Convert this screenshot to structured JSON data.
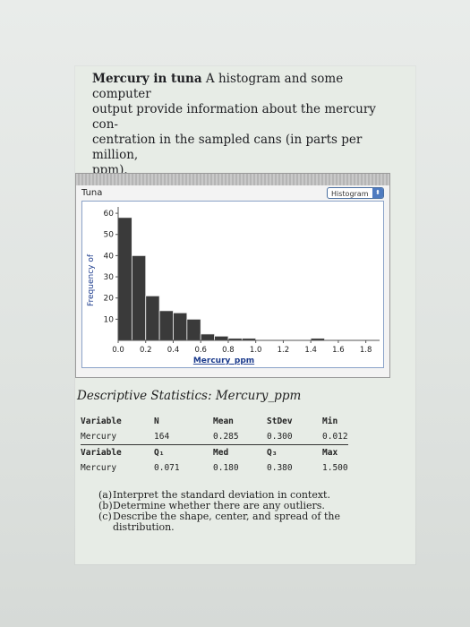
{
  "intro": {
    "bold": "Mercury in tuna",
    "lines": [
      "A histogram and some computer",
      "output provide information about the mercury con-",
      "centration in the sampled cans (in parts per million,",
      "ppm)."
    ]
  },
  "chart_window": {
    "dataset_name": "Tuna",
    "view_select": "Histogram",
    "view_select_arrows": "⬍"
  },
  "chart_data": {
    "type": "bar",
    "bins": [
      [
        0.0,
        0.1
      ],
      [
        0.1,
        0.2
      ],
      [
        0.2,
        0.3
      ],
      [
        0.3,
        0.4
      ],
      [
        0.4,
        0.5
      ],
      [
        0.5,
        0.6
      ],
      [
        0.6,
        0.7
      ],
      [
        0.7,
        0.8
      ],
      [
        0.8,
        0.9
      ],
      [
        0.9,
        1.0
      ],
      [
        1.0,
        1.1
      ],
      [
        1.1,
        1.2
      ],
      [
        1.2,
        1.3
      ],
      [
        1.3,
        1.4
      ],
      [
        1.4,
        1.5
      ]
    ],
    "values": [
      58,
      40,
      21,
      14,
      13,
      10,
      3,
      2,
      1,
      1,
      0,
      0,
      0,
      0,
      1
    ],
    "xlabel": "Mercury_ppm",
    "ylabel": "Frequency of",
    "xlim": [
      0.0,
      1.9
    ],
    "ylim": [
      0,
      63
    ],
    "xticks": [
      "0.0",
      "0.2",
      "0.4",
      "0.6",
      "0.8",
      "1.0",
      "1.2",
      "1.4",
      "1.6",
      "1.8"
    ],
    "yticks": [
      "10",
      "20",
      "30",
      "40",
      "50",
      "60"
    ]
  },
  "stats": {
    "title": "Descriptive Statistics: Mercury_ppm",
    "header1": [
      "Variable",
      "N",
      "Mean",
      "StDev",
      "Min"
    ],
    "row1": [
      "Mercury",
      "164",
      "0.285",
      "0.300",
      "0.012"
    ],
    "header2": [
      "Variable",
      "Q₁",
      "Med",
      "Q₃",
      "Max"
    ],
    "row2": [
      "Mercury",
      "0.071",
      "0.180",
      "0.380",
      "1.500"
    ]
  },
  "questions": [
    {
      "label": "(a)",
      "text": "Interpret the standard deviation in context."
    },
    {
      "label": "(b)",
      "text": "Determine whether there are any outliers."
    },
    {
      "label": "(c)",
      "text": "Describe the shape, center, and spread of the distribution."
    }
  ]
}
